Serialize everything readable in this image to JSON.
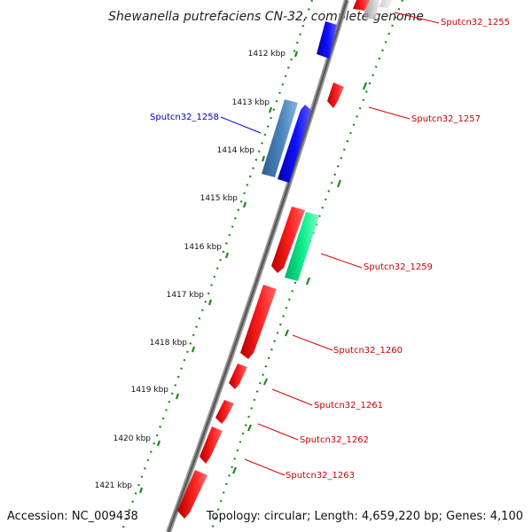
{
  "title": "Shewanella putrefaciens CN-32, complete genome",
  "footer": {
    "accession": "Accession: NC_009438",
    "topology": "Topology: circular; Length: 4,659,220 bp; Genes: 4,100"
  },
  "colors": {
    "backbone": "#808080",
    "ticks": "#1a8a1a",
    "forward_gene": "#0000ee",
    "forward_gene_alt": "#4682b4",
    "reverse_gene": "#ee0000",
    "other_gene": "#00ee88",
    "label_forward": "#0000cc",
    "label_reverse": "#cc0000"
  },
  "scale": {
    "ticks": [
      {
        "label": "1412 kbp"
      },
      {
        "label": "1413 kbp"
      },
      {
        "label": "1414 kbp"
      },
      {
        "label": "1415 kbp"
      },
      {
        "label": "1416 kbp"
      },
      {
        "label": "1417 kbp"
      },
      {
        "label": "1418 kbp"
      },
      {
        "label": "1419 kbp"
      },
      {
        "label": "1420 kbp"
      },
      {
        "label": "1421 kbp"
      }
    ]
  },
  "gene_labels": [
    {
      "text": "Sputcn32_1255",
      "strand": "reverse"
    },
    {
      "text": "Sputcn32_1257",
      "strand": "reverse"
    },
    {
      "text": "Sputcn32_1258",
      "strand": "forward"
    },
    {
      "text": "Sputcn32_1259",
      "strand": "reverse"
    },
    {
      "text": "Sputcn32_1260",
      "strand": "reverse"
    },
    {
      "text": "Sputcn32_1261",
      "strand": "reverse"
    },
    {
      "text": "Sputcn32_1262",
      "strand": "reverse"
    },
    {
      "text": "Sputcn32_1263",
      "strand": "reverse"
    }
  ]
}
